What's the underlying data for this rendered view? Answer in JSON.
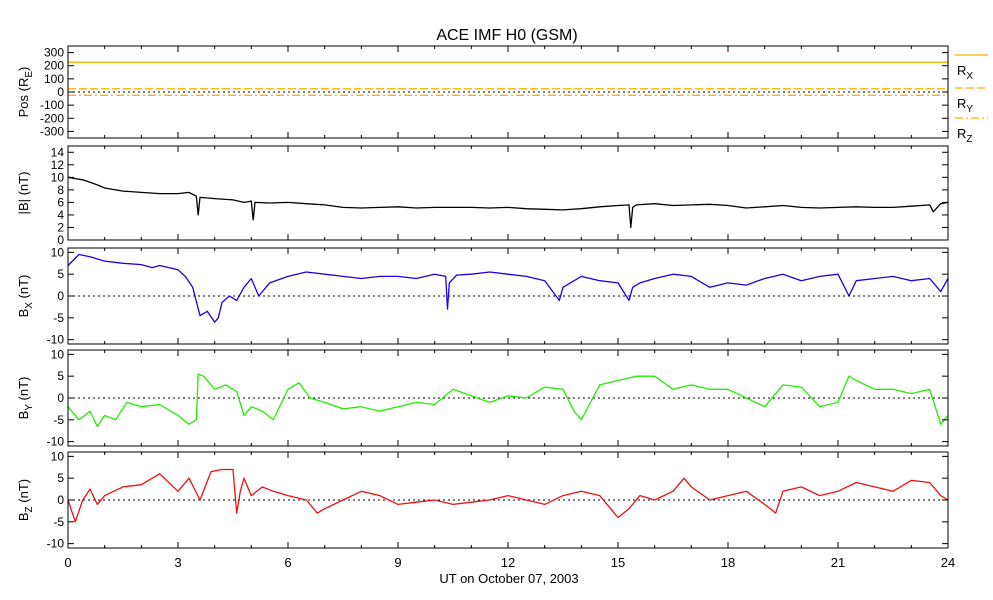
{
  "chart_data": {
    "type": "line",
    "title": "ACE IMF H0 (GSM)",
    "xlabel": "UT on October 07, 2003",
    "xlim": [
      0,
      24
    ],
    "xticks": [
      "0",
      "3",
      "6",
      "9",
      "12",
      "15",
      "18",
      "21",
      "24"
    ],
    "panels": [
      {
        "id": "pos",
        "ylabel_main": "Pos (R",
        "ylabel_sub": "E",
        "ylabel_tail": ")",
        "ylim": [
          -350,
          350
        ],
        "yticks": [
          300,
          200,
          100,
          0,
          -100,
          -200,
          -300
        ],
        "ytick_labels": [
          "300",
          "200",
          "100",
          "0",
          "-100",
          "-200",
          "-300"
        ],
        "zero_line": true,
        "series": [
          {
            "name": "R",
            "sub": "X",
            "color": "#ffb000",
            "dash": "",
            "values_x": [
              0,
              24
            ],
            "values_y": [
              227,
              227
            ]
          },
          {
            "name": "R",
            "sub": "Y",
            "color": "#ffb000",
            "dash": "8 3",
            "values_x": [
              0,
              24
            ],
            "values_y": [
              24,
              24
            ]
          },
          {
            "name": "R",
            "sub": "Z",
            "color": "#ffb000",
            "dash": "8 3 2 3",
            "values_x": [
              0,
              24
            ],
            "values_y": [
              -25,
              -25
            ]
          }
        ]
      },
      {
        "id": "bmag",
        "ylabel_main": "|B| (nT)",
        "ylabel_sub": "",
        "ylabel_tail": "",
        "ylim": [
          0,
          15
        ],
        "yticks": [
          14,
          12,
          10,
          8,
          6,
          4,
          2,
          0
        ],
        "ytick_labels": [
          "14",
          "12",
          "10",
          "8",
          "6",
          "4",
          "2",
          "0"
        ],
        "zero_line": false,
        "series": [
          {
            "name": "|B|",
            "sub": "",
            "color": "#000000",
            "dash": "",
            "values_x": [
              0,
              0.2,
              0.4,
              0.6,
              0.8,
              1.0,
              1.5,
              2.0,
              2.5,
              3.0,
              3.3,
              3.5,
              3.55,
              3.6,
              4.0,
              4.5,
              4.8,
              5.0,
              5.05,
              5.1,
              5.5,
              6.0,
              6.5,
              7.0,
              7.5,
              8.0,
              8.5,
              9.0,
              9.5,
              10.0,
              10.5,
              11.0,
              11.5,
              12.0,
              12.5,
              13.0,
              13.5,
              14.0,
              14.5,
              15.0,
              15.3,
              15.35,
              15.4,
              15.5,
              16.0,
              16.5,
              17.0,
              17.5,
              18.0,
              18.5,
              19.0,
              19.5,
              20.0,
              20.5,
              21.0,
              21.5,
              22.0,
              22.5,
              23.0,
              23.5,
              23.6,
              23.8,
              24.0
            ],
            "values_y": [
              10,
              9.8,
              9.6,
              9.2,
              8.8,
              8.3,
              7.8,
              7.6,
              7.4,
              7.4,
              7.6,
              7.0,
              4.0,
              6.8,
              6.6,
              6.4,
              6.0,
              6.2,
              3.2,
              6.0,
              5.9,
              6.0,
              5.8,
              5.6,
              5.2,
              5.1,
              5.2,
              5.3,
              5.1,
              5.2,
              5.2,
              5.2,
              5.1,
              5.2,
              5.0,
              4.9,
              4.8,
              5.0,
              5.3,
              5.5,
              5.6,
              2.0,
              5.2,
              5.6,
              5.8,
              5.5,
              5.6,
              5.7,
              5.5,
              5.1,
              5.3,
              5.5,
              5.2,
              5.1,
              5.2,
              5.3,
              5.2,
              5.2,
              5.4,
              5.6,
              4.5,
              5.8,
              6.0
            ]
          }
        ]
      },
      {
        "id": "bx",
        "ylabel_main": "B",
        "ylabel_sub": "X",
        "ylabel_tail": " (nT)",
        "ylim": [
          -11,
          11
        ],
        "yticks": [
          10,
          5,
          0,
          -5,
          -10
        ],
        "ytick_labels": [
          "10",
          "5",
          "0",
          "-5",
          "-10"
        ],
        "zero_line": true,
        "series": [
          {
            "name": "Bx",
            "sub": "",
            "color": "#2000dd",
            "dash": "",
            "values_x": [
              0,
              0.3,
              0.6,
              1.0,
              1.5,
              2.0,
              2.3,
              2.5,
              3.0,
              3.2,
              3.4,
              3.6,
              3.8,
              4.0,
              4.1,
              4.2,
              4.4,
              4.6,
              4.8,
              5.0,
              5.2,
              5.5,
              6.0,
              6.5,
              7.0,
              7.5,
              8.0,
              8.5,
              9.0,
              9.5,
              10.0,
              10.3,
              10.35,
              10.4,
              10.6,
              11.0,
              11.5,
              12.0,
              12.5,
              13.0,
              13.4,
              13.5,
              13.7,
              14.0,
              14.5,
              15.0,
              15.3,
              15.4,
              15.6,
              16.0,
              16.5,
              17.0,
              17.5,
              18.0,
              18.5,
              19.0,
              19.5,
              20.0,
              20.5,
              21.0,
              21.3,
              21.5,
              22.0,
              22.5,
              23.0,
              23.5,
              23.8,
              24.0
            ],
            "values_y": [
              7,
              9.5,
              9.0,
              8.0,
              7.5,
              7.2,
              6.5,
              7.0,
              6.0,
              4.5,
              2.0,
              -4.5,
              -3.5,
              -6.0,
              -5.0,
              -1.5,
              0,
              -1.0,
              2.0,
              4.0,
              0,
              3.0,
              4.5,
              5.5,
              5.0,
              4.5,
              4.0,
              4.5,
              4.5,
              4.0,
              5.0,
              4.5,
              -3.0,
              3.0,
              4.8,
              5.0,
              5.5,
              5.0,
              4.5,
              3.5,
              -1.0,
              2.0,
              3.0,
              4.5,
              3.5,
              3.0,
              -1.0,
              2.0,
              3.0,
              4.0,
              5.0,
              4.5,
              2.0,
              3.0,
              2.5,
              4.0,
              5.0,
              3.5,
              4.5,
              5.0,
              0,
              3.5,
              4.0,
              4.5,
              3.5,
              4.0,
              1.0,
              4.0
            ]
          }
        ]
      },
      {
        "id": "by",
        "ylabel_main": "B",
        "ylabel_sub": "Y",
        "ylabel_tail": " (nT)",
        "ylim": [
          -11,
          11
        ],
        "yticks": [
          10,
          5,
          0,
          -5,
          -10
        ],
        "ytick_labels": [
          "10",
          "5",
          "0",
          "-5",
          "-10"
        ],
        "zero_line": true,
        "series": [
          {
            "name": "By",
            "sub": "",
            "color": "#22ee00",
            "dash": "",
            "values_x": [
              0,
              0.3,
              0.6,
              0.8,
              1.0,
              1.3,
              1.6,
              2.0,
              2.5,
              3.0,
              3.3,
              3.5,
              3.55,
              3.7,
              4.0,
              4.3,
              4.6,
              4.8,
              5.0,
              5.3,
              5.6,
              6.0,
              6.3,
              6.6,
              7.0,
              7.5,
              8.0,
              8.5,
              9.0,
              9.5,
              10.0,
              10.5,
              11.0,
              11.5,
              12.0,
              12.5,
              13.0,
              13.5,
              13.8,
              14.0,
              14.5,
              15.0,
              15.5,
              16.0,
              16.5,
              17.0,
              17.5,
              18.0,
              18.5,
              19.0,
              19.5,
              20.0,
              20.5,
              21.0,
              21.3,
              21.5,
              22.0,
              22.5,
              23.0,
              23.5,
              23.8,
              24.0
            ],
            "values_y": [
              -2,
              -5.0,
              -3.0,
              -6.5,
              -4.0,
              -5.0,
              -1.0,
              -2.0,
              -1.5,
              -4.0,
              -6.0,
              -5.0,
              5.5,
              5.0,
              2.0,
              3.0,
              1.5,
              -4.0,
              -2.0,
              -3.0,
              -5.0,
              2.0,
              3.5,
              0,
              -1.0,
              -2.5,
              -2.0,
              -3.0,
              -2.0,
              -1.0,
              -1.5,
              2.0,
              0.5,
              -1.0,
              0.5,
              0,
              2.5,
              2.0,
              -3.0,
              -5.0,
              3.0,
              4.0,
              5.0,
              5.0,
              2.0,
              3.0,
              2.0,
              2.0,
              0,
              -2.0,
              3.0,
              2.5,
              -2.0,
              -1.0,
              5.0,
              4.0,
              2.0,
              2.0,
              1.0,
              2.0,
              -6.0,
              -4.0
            ]
          }
        ]
      },
      {
        "id": "bz",
        "ylabel_main": "B",
        "ylabel_sub": "Z",
        "ylabel_tail": " (nT)",
        "ylim": [
          -11,
          11
        ],
        "yticks": [
          10,
          5,
          0,
          -5,
          -10
        ],
        "ytick_labels": [
          "10",
          "5",
          "0",
          "-5",
          "-10"
        ],
        "zero_line": true,
        "series": [
          {
            "name": "Bz",
            "sub": "",
            "color": "#ee1010",
            "dash": "",
            "values_x": [
              0,
              0.2,
              0.4,
              0.6,
              0.8,
              1.0,
              1.5,
              2.0,
              2.5,
              3.0,
              3.3,
              3.6,
              3.9,
              4.2,
              4.5,
              4.6,
              4.7,
              4.8,
              5.0,
              5.3,
              5.6,
              6.0,
              6.5,
              6.8,
              7.0,
              7.5,
              8.0,
              8.5,
              9.0,
              9.5,
              10.0,
              10.5,
              11.0,
              11.5,
              12.0,
              12.5,
              13.0,
              13.5,
              14.0,
              14.5,
              15.0,
              15.3,
              15.6,
              16.0,
              16.5,
              16.8,
              17.0,
              17.5,
              18.0,
              18.5,
              19.0,
              19.3,
              19.5,
              20.0,
              20.5,
              21.0,
              21.5,
              22.0,
              22.5,
              23.0,
              23.5,
              23.8,
              24.0
            ],
            "values_y": [
              0,
              -5.0,
              0,
              2.5,
              -1.0,
              1.0,
              3.0,
              3.5,
              6.0,
              2.0,
              5.0,
              0,
              6.5,
              7.0,
              7.0,
              -3.0,
              2.0,
              5.0,
              1.0,
              3.0,
              2.0,
              1.0,
              0,
              -3.0,
              -2.0,
              0,
              2.0,
              1.0,
              -1.0,
              -0.5,
              0,
              -1.0,
              -0.5,
              0,
              1.0,
              0,
              -1.0,
              1.0,
              2.0,
              1.0,
              -4.0,
              -2.0,
              1.0,
              0,
              2.0,
              5.0,
              3.0,
              0,
              1.0,
              2.0,
              -1.0,
              -3.0,
              2.0,
              3.0,
              1.0,
              2.0,
              4.0,
              3.0,
              2.0,
              4.5,
              4.0,
              1.0,
              0
            ]
          }
        ]
      }
    ]
  }
}
